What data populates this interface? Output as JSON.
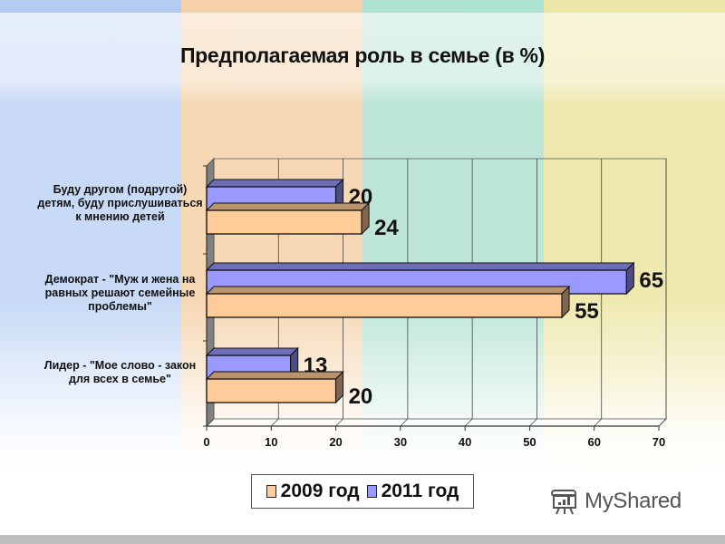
{
  "slide": {
    "title": "Предполагаемая роль в семье (в %)",
    "background_bands": [
      "#c8daf5",
      "#f6d8b4",
      "#bde6d8",
      "#efe9b0"
    ],
    "top_strip_colors": [
      "#5b8ee0",
      "#ea9a44",
      "#4ebf9a",
      "#d4c93c"
    ],
    "watermark": "MyShared"
  },
  "legend": {
    "items": [
      {
        "label": "2009 год",
        "color": "#ffcc99"
      },
      {
        "label": "2011 год",
        "color": "#9999ff"
      }
    ]
  },
  "categories": [
    {
      "label": "Буду другом (подругой) детям, буду прислушиваться к мнению детей"
    },
    {
      "label": "Демократ - \"Муж и жена на равных решают семейные проблемы\""
    },
    {
      "label": "Лидер - \"Мое слово - закон для всех в семье\""
    }
  ],
  "chart_data": {
    "type": "bar",
    "orientation": "horizontal",
    "style": "3d-clustered",
    "title": "Предполагаемая роль в семье (в %)",
    "categories": [
      "Буду другом (подругой) детям, буду прислушиваться к мнению детей",
      "Демократ - \"Муж и жена на равных решают семейные проблемы\"",
      "Лидер - \"Мое слово - закон для всех в семье\""
    ],
    "series": [
      {
        "name": "2009 год",
        "color": "#ffcc99",
        "values": [
          24,
          55,
          20
        ]
      },
      {
        "name": "2011 год",
        "color": "#9999ff",
        "values": [
          20,
          65,
          13
        ]
      }
    ],
    "xlabel": "",
    "ylabel": "",
    "xlim": [
      0,
      70
    ],
    "x_ticks": [
      "0",
      "10",
      "20",
      "30",
      "40",
      "50",
      "60",
      "70"
    ],
    "grid": true,
    "legend_position": "bottom",
    "data_labels": true
  }
}
